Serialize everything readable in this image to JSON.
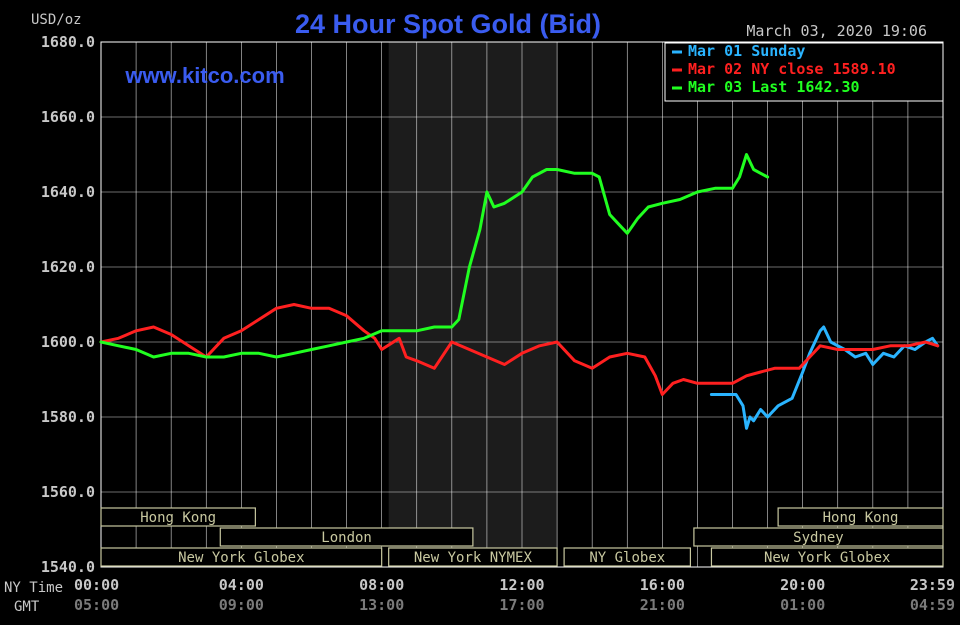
{
  "title": "24 Hour Spot Gold (Bid)",
  "website": "www.kitco.com",
  "timestamp": "March 03, 2020 19:06",
  "colors": {
    "background": "#000000",
    "grid": "#ffffff",
    "title": "#3a5cf0",
    "website": "#3a5cf0",
    "session_box": "#c8c8a0",
    "nymex_shade": "#1c1c1c",
    "text": "#c8c8c8"
  },
  "chart_data": {
    "type": "line",
    "ylabel": "USD/oz",
    "ylim": [
      1540,
      1680
    ],
    "ytick_step": 20,
    "ytick_labels": [
      "1680.0",
      "1660.0",
      "1640.0",
      "1620.0",
      "1600.0",
      "1580.0",
      "1560.0",
      "1540.0"
    ],
    "xlim": [
      0,
      24
    ],
    "xticks": [
      0,
      4,
      8,
      12,
      16,
      20,
      24
    ],
    "ny_time_label": "NY Time",
    "gmt_label": "GMT",
    "ny_time_ticks": [
      "00:00",
      "04:00",
      "08:00",
      "12:00",
      "16:00",
      "20:00",
      "23:59"
    ],
    "gmt_ticks": [
      "05:00",
      "09:00",
      "13:00",
      "17:00",
      "21:00",
      "01:00",
      "04:59"
    ],
    "grid": true,
    "legend_position": "top-right",
    "legend": [
      {
        "label": "Mar 01 Sunday",
        "color": "#2ab4ff"
      },
      {
        "label": "Mar 02 NY close 1589.10",
        "color": "#ff2020"
      },
      {
        "label": "Mar 03 Last 1642.30",
        "color": "#20ff20"
      }
    ],
    "series": [
      {
        "name": "Mar 01 Sunday",
        "color": "#2ab4ff",
        "x": [
          17.4,
          18.1,
          18.3,
          18.4,
          18.5,
          18.6,
          18.8,
          19.0,
          19.3,
          19.7,
          20.0,
          20.2,
          20.5,
          20.6,
          20.8,
          21.0,
          21.2,
          21.5,
          21.8,
          22.0,
          22.3,
          22.6,
          22.9,
          23.2,
          23.5,
          23.7,
          23.85
        ],
        "y": [
          1586,
          1586,
          1583,
          1577,
          1580,
          1579,
          1582,
          1580,
          1583,
          1585,
          1592,
          1597,
          1603,
          1604,
          1600,
          1599,
          1598,
          1596,
          1597,
          1594,
          1597,
          1596,
          1599,
          1598,
          1600,
          1601,
          1599
        ]
      },
      {
        "name": "Mar 02 NY close 1589.10",
        "color": "#ff2020",
        "x": [
          0,
          0.5,
          1.0,
          1.5,
          2.0,
          2.5,
          3.0,
          3.5,
          4.0,
          4.5,
          5.0,
          5.5,
          6.0,
          6.5,
          7.0,
          7.5,
          7.8,
          8.0,
          8.5,
          8.7,
          9.0,
          9.5,
          10.0,
          10.5,
          11.0,
          11.5,
          12.0,
          12.5,
          13.0,
          13.5,
          14.0,
          14.5,
          15.0,
          15.5,
          15.8,
          16.0,
          16.3,
          16.6,
          17.0,
          17.5,
          18.0,
          18.4,
          18.8,
          19.2,
          19.6,
          19.9,
          20.2,
          20.5,
          21.0,
          21.5,
          22.0,
          22.5,
          23.0,
          23.5,
          23.85
        ],
        "y": [
          1600,
          1601,
          1603,
          1604,
          1602,
          1599,
          1596,
          1601,
          1603,
          1606,
          1609,
          1610,
          1609,
          1609,
          1607,
          1603,
          1601,
          1598,
          1601,
          1596,
          1595,
          1593,
          1600,
          1598,
          1596,
          1594,
          1597,
          1599,
          1600,
          1595,
          1593,
          1596,
          1597,
          1596,
          1591,
          1586,
          1589,
          1590,
          1589,
          1589,
          1589,
          1591,
          1592,
          1593,
          1593,
          1593,
          1596,
          1599,
          1598,
          1598,
          1598,
          1599,
          1599,
          1600,
          1599
        ]
      },
      {
        "name": "Mar 03 Last 1642.30",
        "color": "#20ff20",
        "x": [
          0,
          0.5,
          1.0,
          1.5,
          2.0,
          2.5,
          3.0,
          3.5,
          4.0,
          4.5,
          5.0,
          5.5,
          6.0,
          6.5,
          7.0,
          7.5,
          8.0,
          8.5,
          9.0,
          9.5,
          10.0,
          10.2,
          10.5,
          10.8,
          11.0,
          11.2,
          11.5,
          12.0,
          12.3,
          12.7,
          13.0,
          13.5,
          14.0,
          14.2,
          14.5,
          14.8,
          15.0,
          15.3,
          15.6,
          16.0,
          16.5,
          17.0,
          17.5,
          18.0,
          18.2,
          18.4,
          18.6,
          18.8,
          19.0
        ],
        "y": [
          1600,
          1599,
          1598,
          1596,
          1597,
          1597,
          1596,
          1596,
          1597,
          1597,
          1596,
          1597,
          1598,
          1599,
          1600,
          1601,
          1603,
          1603,
          1603,
          1604,
          1604,
          1606,
          1620,
          1630,
          1640,
          1636,
          1637,
          1640,
          1644,
          1646,
          1646,
          1645,
          1645,
          1644,
          1634,
          1631,
          1629,
          1633,
          1636,
          1637,
          1638,
          1640,
          1641,
          1641,
          1644,
          1650,
          1646,
          1645,
          1644
        ]
      }
    ]
  },
  "sessions": [
    {
      "label": "Hong Kong",
      "row": 0,
      "start": 0,
      "end": 4.4
    },
    {
      "label": "Hong Kong",
      "row": 0,
      "start": 19.3,
      "end": 24
    },
    {
      "label": "London",
      "row": 1,
      "start": 3.4,
      "end": 10.6
    },
    {
      "label": "Sydney",
      "row": 1,
      "start": 16.9,
      "end": 24
    },
    {
      "label": "New York Globex",
      "row": 2,
      "start": 0,
      "end": 8.0
    },
    {
      "label": "New York NYMEX",
      "row": 2,
      "start": 8.2,
      "end": 13.0
    },
    {
      "label": "NY Globex",
      "row": 2,
      "start": 13.2,
      "end": 16.8
    },
    {
      "label": "New York Globex",
      "row": 2,
      "start": 17.4,
      "end": 24
    }
  ],
  "nymex_shade": {
    "start": 8.2,
    "end": 13.0
  }
}
